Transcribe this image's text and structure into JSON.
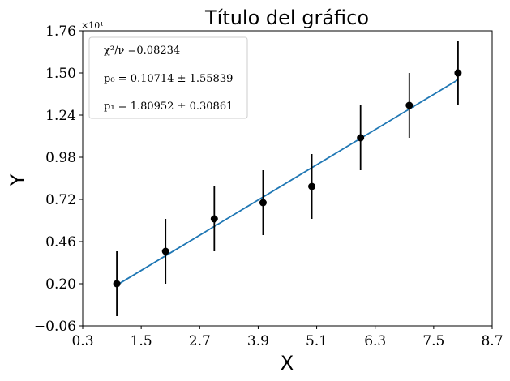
{
  "chart_data": {
    "type": "scatter",
    "title": "Título del gráfico",
    "xlabel": "X",
    "ylabel": "Y",
    "y_multiplier": "×10¹",
    "xlim": [
      0.3,
      8.7
    ],
    "ylim": [
      -0.06,
      1.76
    ],
    "xticks": [
      "0.3",
      "1.5",
      "2.7",
      "3.9",
      "5.1",
      "6.3",
      "7.5",
      "8.7"
    ],
    "yticks": [
      "−0.06",
      "0.20",
      "0.46",
      "0.72",
      "0.98",
      "1.24",
      "1.50",
      "1.76"
    ],
    "grid": false,
    "legend_position": "top-left",
    "legend": [
      "χ²/ν =0.08234",
      "p₀ = 0.10714 ± 1.55839",
      "p₁ = 1.80952 ± 0.30861"
    ],
    "series": [
      {
        "type": "errorbar",
        "marker_color": "#000000",
        "x": [
          1,
          2,
          3,
          4,
          5,
          6,
          7,
          8
        ],
        "y": [
          0.2,
          0.4,
          0.6,
          0.7,
          0.8,
          1.1,
          1.3,
          1.5
        ],
        "yerr": [
          0.2,
          0.2,
          0.2,
          0.2,
          0.2,
          0.2,
          0.2,
          0.2
        ]
      },
      {
        "type": "line",
        "color": "#1f77b4",
        "x": [
          1,
          8
        ],
        "y": [
          0.191666,
          1.45833
        ]
      }
    ]
  }
}
